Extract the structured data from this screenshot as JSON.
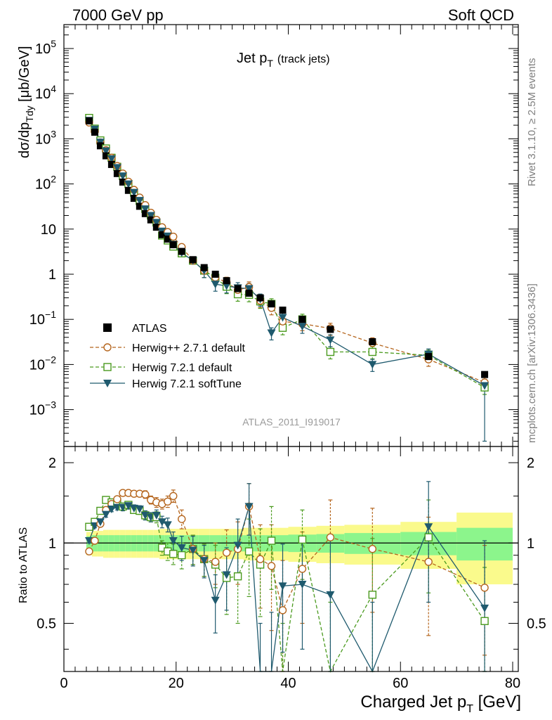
{
  "header": {
    "left": "7000 GeV pp",
    "right": "Soft QCD"
  },
  "side_labels": {
    "rivet": "Rivet 3.1.10, ≥ 2.5M events",
    "mcplots": "mcplots.cern.ch [arXiv:1306.3436]"
  },
  "plot_title": {
    "main": "Jet p",
    "sub": "T",
    "extra": "(track jets)"
  },
  "watermark": "ATLAS_2011_I919017",
  "axes": {
    "x_label_main": "Charged Jet p",
    "x_label_sub": "T",
    "x_label_unit": " [GeV]",
    "y_label_main": "dσ/dp",
    "y_label_sub": "Tdy",
    "y_label_unit": " [μb/GeV]",
    "ratio_label": "Ratio to ATLAS"
  },
  "legend": [
    {
      "key": "atlas",
      "label": "ATLAS"
    },
    {
      "key": "hpp",
      "label": "Herwig++ 2.7.1 default"
    },
    {
      "key": "h72",
      "label": "Herwig 7.2.1 default"
    },
    {
      "key": "soft",
      "label": "Herwig 7.2.1 softTune"
    }
  ],
  "colors": {
    "atlas": "#000000",
    "hpp": "#b5651d",
    "h72": "#4a9a1e",
    "soft": "#1f5a6e",
    "band_inner": "#8cf58c",
    "band_outer": "#fafa8c"
  },
  "chart_data": {
    "type": "scatter",
    "x_axis": {
      "ticks": [
        0,
        20,
        40,
        60,
        80
      ],
      "range": [
        0,
        81
      ],
      "scale": "linear"
    },
    "main_y_axis": {
      "scale": "log",
      "range": [
        0.0002,
        300000
      ],
      "tick_labels": [
        "10^-3",
        "10^-2",
        "10^-1",
        "1",
        "10",
        "10^2",
        "10^3",
        "10^4",
        "10^5"
      ]
    },
    "ratio_y_axis": {
      "range": [
        0.33,
        2.3
      ],
      "tick_labels": [
        "0.5",
        "1",
        "2"
      ]
    },
    "x": [
      4.5,
      5.5,
      6.5,
      7.5,
      8.5,
      9.5,
      10.5,
      11.5,
      12.5,
      13.5,
      14.5,
      15.5,
      16.5,
      17.5,
      18.5,
      19.5,
      21,
      23,
      25,
      27,
      29,
      31,
      33,
      35,
      37,
      39,
      42.5,
      47.5,
      55,
      65,
      75
    ],
    "series": [
      {
        "name": "ATLAS",
        "values": [
          2500,
          1400,
          700,
          420,
          270,
          170,
          110,
          72,
          48,
          32,
          22,
          16,
          11,
          7.5,
          6,
          4.5,
          3.2,
          2.1,
          1.4,
          1.0,
          0.72,
          0.48,
          0.38,
          0.3,
          0.22,
          0.16,
          0.1,
          0.06,
          0.032,
          0.015,
          0.006
        ]
      },
      {
        "name": "Herwig++ 2.7.1 default",
        "values": [
          2300,
          1450,
          830,
          560,
          380,
          250,
          170,
          112,
          74,
          50,
          34,
          23,
          16,
          11,
          8.6,
          6.8,
          4.0,
          2.0,
          1.2,
          0.85,
          0.66,
          0.45,
          0.52,
          0.26,
          0.18,
          0.09,
          0.08,
          0.063,
          0.03,
          0.013,
          0.004
        ]
      },
      {
        "name": "Herwig 7.2.1 default",
        "values": [
          2900,
          1680,
          920,
          610,
          380,
          240,
          150,
          100,
          64,
          42,
          28,
          20,
          14,
          7.2,
          5.6,
          4.1,
          2.9,
          2.0,
          1.2,
          0.83,
          0.53,
          0.36,
          0.35,
          0.25,
          0.22,
          0.065,
          0.1,
          0.019,
          0.019,
          0.016,
          0.0031
        ]
      },
      {
        "name": "Herwig 7.2.1 softTune",
        "values": [
          2550,
          1630,
          840,
          540,
          360,
          230,
          150,
          100,
          65,
          43,
          28,
          20,
          14,
          9.0,
          7.0,
          4.6,
          3.0,
          2.0,
          1.2,
          0.6,
          0.55,
          0.5,
          0.48,
          0.28,
          0.05,
          0.11,
          0.07,
          0.035,
          0.01,
          0.017,
          0.0034
        ]
      }
    ],
    "ratios": {
      "hpp": [
        0.93,
        1.02,
        1.18,
        1.33,
        1.4,
        1.46,
        1.54,
        1.54,
        1.53,
        1.53,
        1.52,
        1.45,
        1.42,
        1.4,
        1.43,
        1.5,
        1.23,
        0.95,
        0.87,
        0.85,
        0.92,
        0.95,
        1.37,
        0.87,
        0.82,
        0.56,
        0.8,
        1.05,
        0.95,
        0.85,
        0.68
      ],
      "h72": [
        1.15,
        1.2,
        1.32,
        1.45,
        1.42,
        1.42,
        1.37,
        1.39,
        1.33,
        1.32,
        1.27,
        1.25,
        1.25,
        0.96,
        0.93,
        0.91,
        0.9,
        0.95,
        0.87,
        0.83,
        0.74,
        0.75,
        0.93,
        0.83,
        1.02,
        0.2,
        1.03,
        0.2,
        0.64,
        1.05,
        0.51
      ],
      "soft": [
        1.02,
        1.16,
        1.2,
        1.28,
        1.34,
        1.36,
        1.36,
        1.38,
        1.35,
        1.34,
        1.27,
        1.25,
        1.27,
        1.2,
        1.17,
        1.02,
        0.96,
        0.94,
        0.86,
        0.61,
        0.76,
        0.98,
        1.37,
        0.2,
        0.2,
        0.69,
        0.7,
        0.64,
        0.2,
        1.15,
        0.57
      ]
    },
    "ratio_error": {
      "hpp": [
        0.02,
        0.02,
        0.03,
        0.03,
        0.03,
        0.03,
        0.04,
        0.04,
        0.04,
        0.04,
        0.05,
        0.05,
        0.06,
        0.06,
        0.07,
        0.08,
        0.1,
        0.12,
        0.12,
        0.15,
        0.2,
        0.25,
        0.3,
        0.3,
        0.35,
        0.3,
        0.3,
        0.4,
        0.4,
        0.4,
        0.3
      ],
      "h72": [
        0.02,
        0.02,
        0.03,
        0.03,
        0.03,
        0.03,
        0.04,
        0.04,
        0.04,
        0.04,
        0.05,
        0.05,
        0.06,
        0.06,
        0.07,
        0.08,
        0.1,
        0.12,
        0.12,
        0.15,
        0.2,
        0.25,
        0.3,
        0.3,
        0.35,
        0.3,
        0.3,
        0.4,
        0.4,
        0.4,
        0.3
      ],
      "soft": [
        0.02,
        0.02,
        0.03,
        0.03,
        0.03,
        0.03,
        0.04,
        0.04,
        0.04,
        0.04,
        0.05,
        0.05,
        0.06,
        0.06,
        0.07,
        0.08,
        0.1,
        0.12,
        0.12,
        0.15,
        0.2,
        0.25,
        0.3,
        0.3,
        0.35,
        0.3,
        0.3,
        0.4,
        0.4,
        0.55,
        0.45
      ]
    },
    "band": {
      "edges": [
        4,
        5,
        6,
        7,
        8,
        9,
        10,
        11,
        12,
        13,
        14,
        15,
        16,
        17,
        18,
        19,
        20,
        22,
        24,
        26,
        28,
        30,
        32,
        34,
        36,
        38,
        40,
        45,
        50,
        60,
        70,
        80
      ],
      "inner": [
        0.06,
        0.07,
        0.07,
        0.07,
        0.07,
        0.07,
        0.07,
        0.07,
        0.07,
        0.07,
        0.07,
        0.07,
        0.07,
        0.07,
        0.07,
        0.07,
        0.07,
        0.07,
        0.07,
        0.07,
        0.07,
        0.07,
        0.07,
        0.07,
        0.07,
        0.07,
        0.075,
        0.08,
        0.09,
        0.1,
        0.14
      ],
      "outer": [
        0.1,
        0.11,
        0.11,
        0.12,
        0.12,
        0.12,
        0.12,
        0.12,
        0.12,
        0.12,
        0.12,
        0.12,
        0.12,
        0.13,
        0.13,
        0.13,
        0.13,
        0.13,
        0.13,
        0.13,
        0.13,
        0.13,
        0.14,
        0.14,
        0.14,
        0.14,
        0.15,
        0.16,
        0.17,
        0.2,
        0.3
      ]
    }
  }
}
